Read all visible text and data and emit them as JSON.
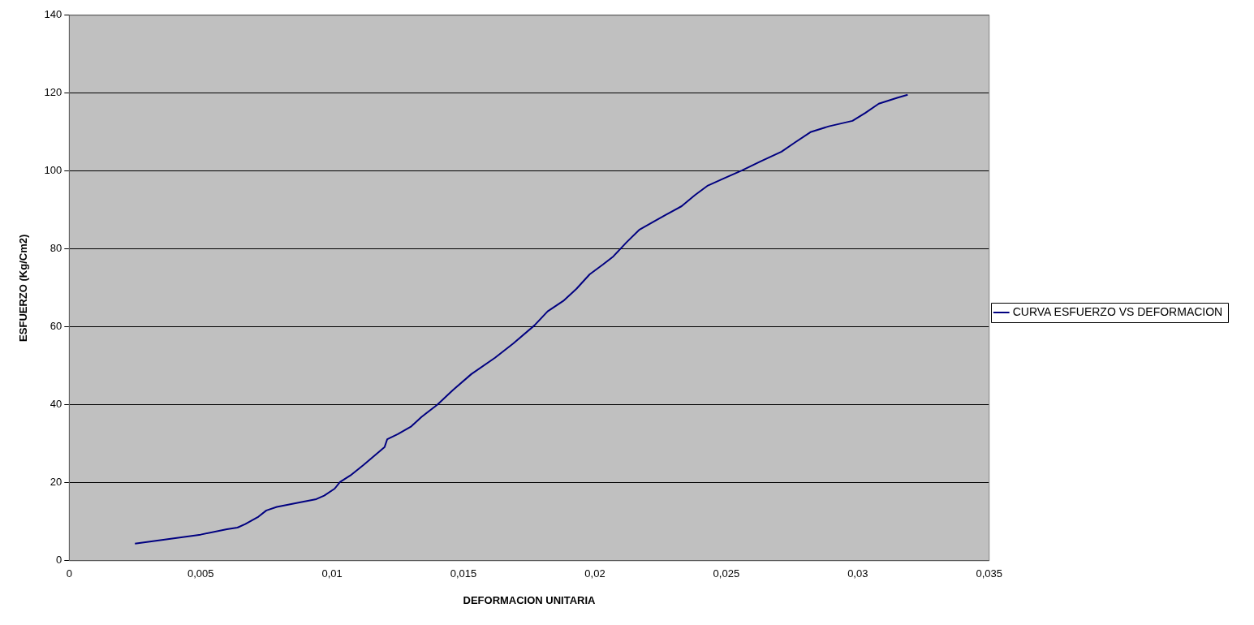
{
  "chart_data": {
    "type": "line",
    "xlabel": "DEFORMACION UNITARIA",
    "ylabel": "ESFUERZO (Kg/Cm2)",
    "xlim": [
      0,
      0.035
    ],
    "ylim": [
      0,
      140
    ],
    "xticks": [
      0,
      {
        "value": 0.005,
        "label": "0,005"
      },
      {
        "value": 0.01,
        "label": "0,01"
      },
      {
        "value": 0.015,
        "label": "0,015"
      },
      {
        "value": 0.02,
        "label": "0,02"
      },
      {
        "value": 0.025,
        "label": "0,025"
      },
      {
        "value": 0.03,
        "label": "0,03"
      },
      {
        "value": 0.035,
        "label": "0,035"
      }
    ],
    "yticks": [
      0,
      20,
      40,
      60,
      80,
      100,
      120,
      140
    ],
    "grid": "y",
    "legend": "right",
    "marker": "none",
    "line_style": "solid",
    "series": [
      {
        "name": "CURVA ESFUERZO VS DEFORMACION",
        "color": "#000080",
        "x": [
          0.0025,
          0.005,
          0.006,
          0.0064,
          0.0067,
          0.0072,
          0.0075,
          0.0079,
          0.0088,
          0.0094,
          0.0097,
          0.0101,
          0.0103,
          0.0107,
          0.0112,
          0.0116,
          0.012,
          0.0121,
          0.0125,
          0.013,
          0.0134,
          0.014,
          0.0146,
          0.0153,
          0.0162,
          0.0169,
          0.0177,
          0.0182,
          0.0188,
          0.0193,
          0.0198,
          0.0203,
          0.0207,
          0.0212,
          0.0217,
          0.0223,
          0.0227,
          0.0233,
          0.0238,
          0.0243,
          0.0249,
          0.0256,
          0.0263,
          0.0271,
          0.0276,
          0.0282,
          0.0289,
          0.0298,
          0.0303,
          0.0308,
          0.0315,
          0.0319
        ],
        "values": [
          4.4,
          6.7,
          8.1,
          8.5,
          9.4,
          11.3,
          12.9,
          13.8,
          15,
          15.8,
          16.7,
          18.5,
          20.2,
          21.9,
          24.6,
          26.9,
          29.2,
          31.2,
          32.5,
          34.4,
          36.9,
          40,
          43.8,
          47.9,
          52.1,
          55.8,
          60.4,
          64,
          66.7,
          69.8,
          73.5,
          76,
          78.1,
          81.7,
          85,
          87.3,
          88.8,
          91,
          93.8,
          96.3,
          98.1,
          100.2,
          102.5,
          105,
          107.3,
          110,
          111.5,
          112.9,
          115,
          117.3,
          118.8,
          119.6
        ]
      }
    ]
  }
}
